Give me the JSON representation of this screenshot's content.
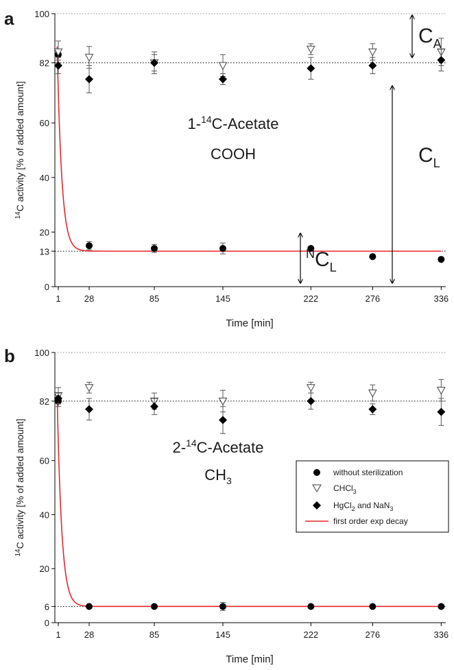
{
  "figure": {
    "panels": [
      {
        "letter": "a",
        "ylabel": {
          "pre": "14",
          "main": "C activity [% of added amount]"
        },
        "xlabel": "Time [min]",
        "annotation": {
          "line1": {
            "pre": "1-",
            "sup": "14",
            "post": "C-Acetate"
          },
          "line2": {
            "main": "COOH",
            "sub": ""
          }
        },
        "labels": {
          "ca": {
            "main": "C",
            "sub": "A"
          },
          "cl": {
            "main": "C",
            "sub": "L"
          },
          "ncl": {
            "pre": "N",
            "main": "C",
            "sub": "L"
          }
        }
      },
      {
        "letter": "b",
        "ylabel": {
          "pre": "14",
          "main": "C activity [% of added amount]"
        },
        "xlabel": "Time [min]",
        "annotation": {
          "line1": {
            "pre": "2-",
            "sup": "14",
            "post": "C-Acetate"
          },
          "line2": {
            "main": "CH",
            "sub": "3"
          }
        },
        "legend": [
          {
            "main": "without sterilization",
            "sub": "",
            "post": ""
          },
          {
            "main": "CHCl",
            "sub": "3",
            "post": ""
          },
          {
            "main": "HgCl",
            "sub": "2",
            "post": " and NaN",
            "sub2": "3"
          },
          {
            "main": "first order exp decay",
            "sub": "",
            "post": ""
          }
        ]
      }
    ]
  },
  "chart_data": [
    {
      "type": "scatter",
      "x_ticks": [
        1,
        28,
        85,
        145,
        222,
        276,
        336
      ],
      "y_ticks": [
        0,
        13,
        20,
        40,
        60,
        82,
        100
      ],
      "xlim": [
        -2,
        340
      ],
      "ylim": [
        0,
        100
      ],
      "reference_lines": [
        82,
        100,
        13
      ],
      "series": [
        {
          "marker": "circle",
          "color": "#000000",
          "points": [
            [
              1,
              85,
              2
            ],
            [
              28,
              15,
              1.5
            ],
            [
              85,
              14,
              1.5
            ],
            [
              145,
              14,
              2
            ],
            [
              222,
              14,
              0.5
            ],
            [
              276,
              11,
              0.5
            ],
            [
              336,
              10,
              0.5
            ]
          ]
        },
        {
          "marker": "triangle-down-open",
          "color": "#404040",
          "points": [
            [
              1,
              86,
              4
            ],
            [
              28,
              84,
              4
            ],
            [
              85,
              82,
              3
            ],
            [
              145,
              81,
              4
            ],
            [
              222,
              87,
              2
            ],
            [
              276,
              86,
              3
            ],
            [
              336,
              86,
              5
            ]
          ]
        },
        {
          "marker": "diamond",
          "color": "#000000",
          "points": [
            [
              1,
              81,
              3
            ],
            [
              28,
              76,
              5
            ],
            [
              85,
              82,
              4
            ],
            [
              145,
              76,
              2
            ],
            [
              222,
              80,
              4
            ],
            [
              276,
              81,
              3
            ],
            [
              336,
              83,
              4
            ]
          ]
        }
      ],
      "fit": {
        "color": "#e8262c",
        "y0": 88,
        "plateau": 13,
        "k": 0.25,
        "x_start": 0,
        "x_end": 336
      }
    },
    {
      "type": "scatter",
      "x_ticks": [
        1,
        28,
        85,
        145,
        222,
        276,
        336
      ],
      "y_ticks": [
        0,
        6,
        20,
        40,
        60,
        82,
        100
      ],
      "xlim": [
        -2,
        340
      ],
      "ylim": [
        0,
        100
      ],
      "reference_lines": [
        82,
        100,
        6
      ],
      "series": [
        {
          "marker": "circle",
          "color": "#000000",
          "points": [
            [
              1,
              82,
              2
            ],
            [
              28,
              6,
              0.5
            ],
            [
              85,
              6,
              0.5
            ],
            [
              145,
              6,
              1.5
            ],
            [
              222,
              6,
              0.5
            ],
            [
              276,
              6,
              0.5
            ],
            [
              336,
              6,
              0.5
            ]
          ]
        },
        {
          "marker": "triangle-down-open",
          "color": "#404040",
          "points": [
            [
              1,
              84,
              3
            ],
            [
              28,
              87,
              2
            ],
            [
              85,
              82,
              3
            ],
            [
              145,
              82,
              4
            ],
            [
              222,
              87,
              2
            ],
            [
              276,
              85,
              3
            ],
            [
              336,
              86,
              4
            ]
          ]
        },
        {
          "marker": "diamond",
          "color": "#000000",
          "points": [
            [
              1,
              83,
              2
            ],
            [
              28,
              79,
              4
            ],
            [
              85,
              80,
              3
            ],
            [
              145,
              75,
              5
            ],
            [
              222,
              82,
              3
            ],
            [
              276,
              79,
              2
            ],
            [
              336,
              78,
              5
            ]
          ]
        }
      ],
      "fit": {
        "color": "#e8262c",
        "y0": 84,
        "plateau": 6,
        "k": 0.25,
        "x_start": 0,
        "x_end": 336
      }
    }
  ]
}
